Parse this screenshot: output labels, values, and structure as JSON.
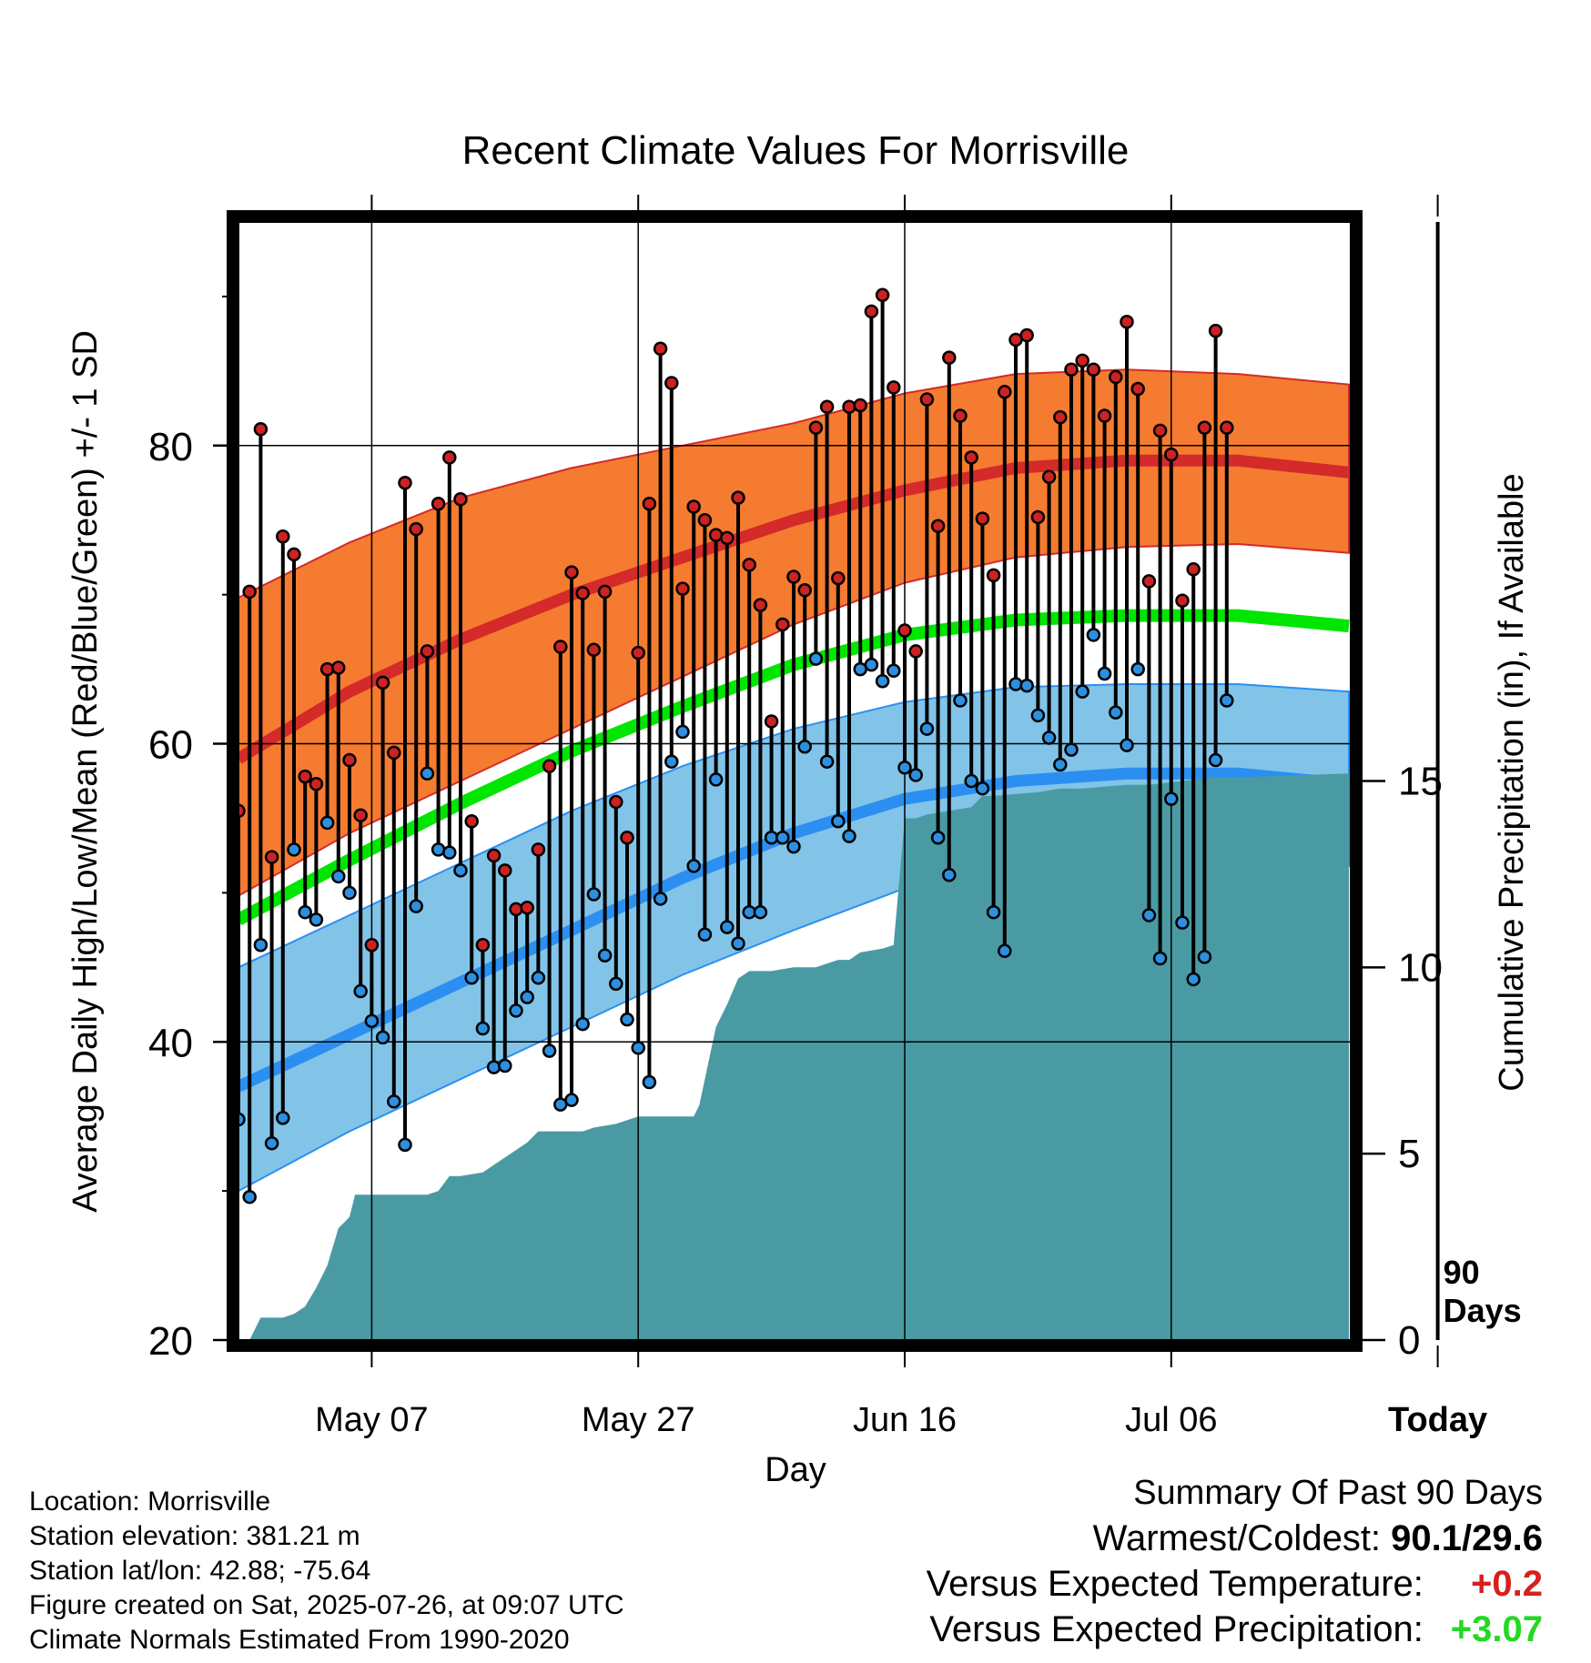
{
  "chart_data": {
    "type": "line",
    "title": "Recent Climate Values For Morrisville",
    "xlabel": "Day",
    "ylabel": "Average Daily High/Low/Mean (Red/Blue/Green) +/- 1 SD",
    "y2label": "Cumulative Precipitation (in), If Available",
    "ylim": [
      20,
      95
    ],
    "y2lim": [
      0,
      30
    ],
    "yticks": [
      "20",
      "40",
      "60",
      "80"
    ],
    "y2ticks": [
      "0",
      "5",
      "10",
      "15"
    ],
    "xticks": [
      "May 07",
      "May 27",
      "Jun 16",
      "Jul 06",
      "Today"
    ],
    "today_marker": "90 Days",
    "grid": true,
    "colors": {
      "high_band": "#f47b30",
      "high_mean": "#d42a2a",
      "low_band": "#82c4e8",
      "low_mean": "#2b8ff2",
      "mean_line": "#00e600",
      "precip": "#4a9aa4",
      "high_dot": "#cc2222",
      "low_dot": "#2d8fe0"
    },
    "normals": {
      "days": [
        0,
        10,
        20,
        30,
        40,
        50,
        60,
        70,
        80,
        90,
        100
      ],
      "high_mean": [
        59.0,
        63.5,
        67.0,
        70.0,
        72.5,
        75.0,
        77.0,
        78.5,
        79.0,
        79.0,
        78.2
      ],
      "high_upper": [
        69.8,
        73.5,
        76.5,
        78.5,
        80.0,
        81.5,
        83.5,
        84.8,
        85.1,
        84.8,
        84.1
      ],
      "high_lower": [
        49.8,
        54.0,
        57.5,
        61.0,
        64.5,
        68.0,
        70.8,
        72.5,
        73.2,
        73.4,
        72.8
      ],
      "mean": [
        48.2,
        52.2,
        56.0,
        59.5,
        62.5,
        65.3,
        67.3,
        68.3,
        68.6,
        68.6,
        67.9
      ],
      "low_mean": [
        37.0,
        40.5,
        44.0,
        47.5,
        51.0,
        54.0,
        56.3,
        57.5,
        58.0,
        58.0,
        57.3
      ],
      "low_upper": [
        45.0,
        48.5,
        52.0,
        55.5,
        58.5,
        61.0,
        62.8,
        63.8,
        64.0,
        64.0,
        63.5
      ],
      "low_lower": [
        30.0,
        34.0,
        37.5,
        41.0,
        44.5,
        47.5,
        50.3,
        51.6,
        52.2,
        52.2,
        51.8
      ]
    },
    "series": [
      {
        "name": "Daily High",
        "values": [
          55.5,
          70.2,
          81.1,
          52.4,
          73.9,
          72.7,
          57.8,
          57.3,
          65.0,
          65.1,
          58.9,
          55.2,
          46.5,
          64.1,
          59.4,
          77.5,
          74.4,
          66.2,
          76.1,
          79.2,
          76.4,
          54.8,
          46.5,
          52.5,
          51.5,
          48.9,
          49.0,
          52.9,
          58.5,
          66.5,
          71.5,
          70.1,
          66.3,
          70.2,
          56.1,
          53.7,
          66.1,
          76.1,
          86.5,
          84.2,
          70.4,
          75.9,
          75.0,
          74.0,
          73.8,
          76.5,
          72.0,
          69.3,
          61.5,
          68.0,
          71.2,
          70.3,
          81.2,
          82.6,
          71.1,
          82.6,
          82.7,
          89.0,
          90.1,
          83.9,
          67.6,
          66.2,
          83.1,
          74.6,
          85.9,
          82.0,
          79.2,
          75.1,
          71.3,
          83.6,
          87.1,
          87.4,
          75.2,
          77.9,
          81.9,
          85.1,
          85.7,
          85.1,
          82.0,
          84.6,
          88.3,
          83.8,
          70.9,
          81.0,
          79.4,
          69.6,
          71.7,
          81.2,
          87.7,
          81.2
        ]
      },
      {
        "name": "Daily Low",
        "values": [
          34.8,
          29.6,
          46.5,
          33.2,
          34.9,
          52.9,
          48.7,
          48.2,
          54.7,
          51.1,
          50.0,
          43.4,
          41.4,
          40.3,
          36.0,
          33.1,
          49.1,
          58.0,
          52.9,
          52.7,
          51.5,
          44.3,
          40.9,
          38.3,
          38.4,
          42.1,
          43.0,
          44.3,
          39.4,
          35.8,
          36.1,
          41.2,
          49.9,
          45.8,
          43.9,
          41.5,
          39.6,
          37.3,
          49.6,
          58.8,
          60.8,
          51.8,
          47.2,
          57.6,
          47.7,
          46.6,
          48.7,
          48.7,
          53.7,
          53.7,
          53.1,
          59.8,
          65.7,
          58.8,
          54.8,
          53.8,
          65.0,
          65.3,
          64.2,
          64.9,
          58.4,
          57.9,
          61.0,
          53.7,
          51.2,
          62.9,
          57.5,
          57.0,
          48.7,
          46.1,
          64.0,
          63.9,
          61.9,
          60.4,
          58.6,
          59.6,
          63.5,
          67.3,
          64.7,
          62.1,
          59.9,
          65.0,
          48.5,
          45.6,
          56.3,
          48.0,
          44.2,
          45.7,
          58.9,
          62.9
        ]
      },
      {
        "name": "Cumulative Precipitation",
        "values": [
          0.0,
          0.0,
          0.6,
          0.6,
          0.7,
          0.9,
          1.4,
          2.0,
          3.0,
          3.3,
          3.9,
          3.9,
          3.9,
          3.9,
          3.9,
          3.9,
          4.0,
          4.4,
          4.4,
          4.5,
          4.9,
          5.3,
          5.6,
          5.6,
          5.6,
          5.7,
          5.8,
          6.0,
          6.0,
          6.0,
          6.0,
          6.3,
          8.4,
          9.0,
          9.7,
          9.9,
          9.9,
          10.0,
          10.0,
          10.2,
          10.2,
          10.4,
          10.5,
          10.6,
          14.0,
          14.0,
          14.1,
          14.2,
          14.3,
          14.6,
          14.6,
          14.7,
          14.8,
          14.8,
          14.8,
          14.9,
          14.9,
          15.0,
          15.1,
          15.1,
          15.2
        ]
      }
    ],
    "precip_days": [
      0,
      1,
      2,
      4,
      5,
      6,
      7,
      8,
      9,
      10,
      10.5,
      12,
      14,
      15,
      16,
      17,
      18,
      19,
      20,
      22,
      24,
      26,
      27,
      28,
      31,
      32,
      34,
      36,
      38,
      40,
      41,
      41.5,
      43,
      44,
      45,
      46,
      48,
      50,
      52,
      54,
      55,
      56,
      58,
      59,
      60,
      61,
      62,
      64,
      66,
      67,
      68,
      72,
      74,
      75,
      76,
      80,
      82,
      85,
      88,
      90,
      100
    ]
  },
  "info": {
    "location": "Location: Morrisville",
    "elevation": "Station elevation: 381.21 m",
    "latlon": "Station lat/lon: 42.88; -75.64",
    "created": "Figure created on Sat, 2025-07-26, at 09:07 UTC",
    "normals": "Climate Normals Estimated From 1990-2020"
  },
  "summary": {
    "title": "Summary Of Past 90 Days",
    "warm_cold_label": "Warmest/Coldest:",
    "warm_cold_value": "90.1/29.6",
    "temp_label": "Versus Expected Temperature:",
    "temp_value": "+0.2",
    "precip_label": "Versus Expected Precipitation:",
    "precip_value": "+3.07"
  }
}
